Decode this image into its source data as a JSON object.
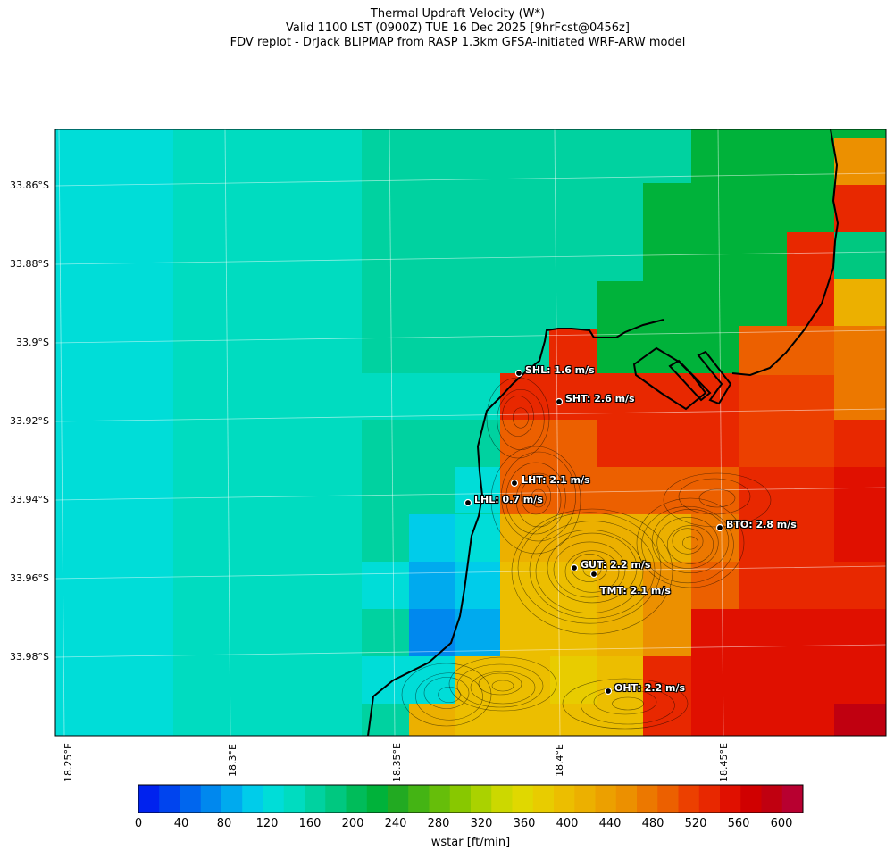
{
  "title": {
    "line1": "Thermal Updraft Velocity (W*)",
    "line2": "Valid 1100 LST (0900Z) TUE 16 Dec 2025 [9hrFcst@0456z]",
    "line3": "FDV replot - DrJack BLIPMAP from RASP 1.3km GFSA-Initiated WRF-ARW model"
  },
  "lat_labels": [
    "33.86°S",
    "33.88°S",
    "33.9°S",
    "33.92°S",
    "33.94°S",
    "33.96°S",
    "33.98°S"
  ],
  "lon_labels": [
    "18.25°E",
    "18.3°E",
    "18.35°E",
    "18.4°E",
    "18.45°E"
  ],
  "stations": [
    {
      "code": "SHL",
      "label": "SHL: 1.6 m/s"
    },
    {
      "code": "SHT",
      "label": "SHT: 2.6 m/s"
    },
    {
      "code": "LHT",
      "label": "LHT: 2.1 m/s"
    },
    {
      "code": "LHL",
      "label": "LHL: 0.7 m/s"
    },
    {
      "code": "BTO",
      "label": "BTO: 2.8 m/s"
    },
    {
      "code": "GUT",
      "label": "GUT: 2.2 m/s"
    },
    {
      "code": "TMT",
      "label": "TMT: 2.1 m/s"
    },
    {
      "code": "OHT",
      "label": "OHT: 2.2 m/s"
    }
  ],
  "colorbar": {
    "label": "wstar [ft/min]",
    "ticks": [
      "0",
      "40",
      "80",
      "120",
      "160",
      "200",
      "240",
      "280",
      "320",
      "360",
      "400",
      "440",
      "480",
      "520",
      "560",
      "600"
    ],
    "colors": [
      "#0022ee",
      "#0044ee",
      "#0066ee",
      "#0088ee",
      "#00aaee",
      "#00ccea",
      "#00ddd8",
      "#00dcc0",
      "#00d2a0",
      "#00c880",
      "#00bc5a",
      "#00b23a",
      "#22aa22",
      "#44b414",
      "#66be0a",
      "#88c800",
      "#aad200",
      "#ccd800",
      "#e0d800",
      "#e8cc00",
      "#ecbe00",
      "#ecb000",
      "#eca000",
      "#ec9000",
      "#ec7800",
      "#ec6000",
      "#ec4000",
      "#e82800",
      "#e01000",
      "#d00000",
      "#c00010",
      "#b80030"
    ]
  }
}
